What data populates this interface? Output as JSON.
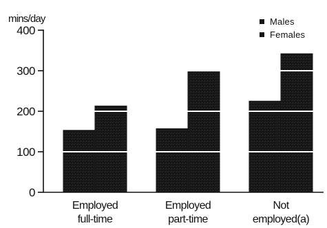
{
  "chart_data": {
    "type": "bar",
    "ylabel": "mins/day",
    "ylim": [
      0,
      400
    ],
    "yticks": [
      0,
      100,
      200,
      300,
      400
    ],
    "categories": [
      [
        "Employed",
        "full-time"
      ],
      [
        "Employed",
        "part-time"
      ],
      [
        "Not",
        "employed(a)"
      ]
    ],
    "series": [
      {
        "name": "Males",
        "values": [
          153,
          157,
          225
        ]
      },
      {
        "name": "Females",
        "values": [
          213,
          298,
          342
        ]
      }
    ],
    "gridlines": true,
    "legend_position": "top-right",
    "colors": {
      "bar": "#161616",
      "gridline": "#ffffff",
      "axis": "#111111"
    }
  }
}
